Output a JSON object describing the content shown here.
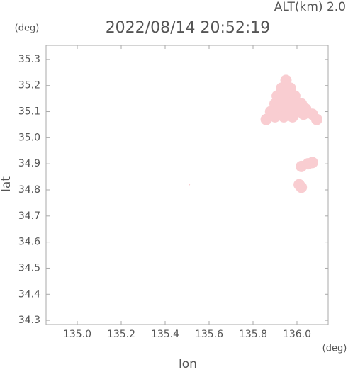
{
  "chart_data": {
    "type": "scatter",
    "title": "2022/08/14 20:52:19",
    "subtitle": "ALT(km) 2.0",
    "x_label": "lon",
    "y_label": "lat",
    "x_unit": "(deg)",
    "y_unit": "(deg)",
    "color": "#f9cdd1",
    "x": [
      135.95,
      135.93,
      135.97,
      135.91,
      135.95,
      135.99,
      135.9,
      135.94,
      135.98,
      136.02,
      135.88,
      135.92,
      135.96,
      136.0,
      136.04,
      135.86,
      135.9,
      135.94,
      135.98,
      136.03,
      136.07,
      136.09,
      136.02,
      136.05,
      136.07,
      136.01,
      136.02,
      135.51
    ],
    "y": [
      35.22,
      35.19,
      35.19,
      35.16,
      35.16,
      35.16,
      35.13,
      35.13,
      35.13,
      35.13,
      35.1,
      35.1,
      35.1,
      35.1,
      35.11,
      35.07,
      35.08,
      35.08,
      35.08,
      35.09,
      35.09,
      35.07,
      34.89,
      34.9,
      34.905,
      34.82,
      34.81,
      34.82
    ],
    "xlim": [
      134.858,
      136.142
    ],
    "ylim": [
      34.284,
      35.354
    ],
    "xticks": [
      {
        "value": 135,
        "label": "135.0"
      },
      135.2,
      135.4,
      135.6,
      135.8,
      {
        "value": 136,
        "label": "136.0"
      }
    ],
    "yticks": [
      34.3,
      34.4,
      34.5,
      34.6,
      34.7,
      34.8,
      34.9,
      {
        "value": 35,
        "label": "35.0"
      },
      35.1,
      35.2,
      35.3
    ]
  }
}
